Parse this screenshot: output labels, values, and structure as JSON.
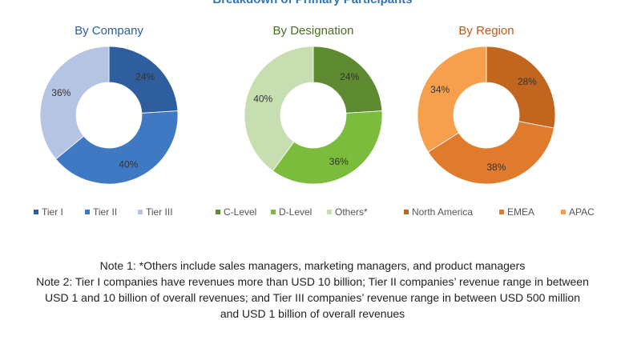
{
  "header": {
    "title": "Breakdown of Primary Participants"
  },
  "chart_data": [
    {
      "type": "pie",
      "title": "By Company",
      "categories": [
        "Tier I",
        "Tier II",
        "Tier III"
      ],
      "values": [
        24,
        40,
        36
      ],
      "labels": [
        "24%",
        "40%",
        "36%"
      ],
      "colors": [
        "#2e5e9e",
        "#3f79c4",
        "#b4c4e2"
      ]
    },
    {
      "type": "pie",
      "title": "By Designation",
      "categories": [
        "C-Level",
        "D-Level",
        "Others*"
      ],
      "values": [
        24,
        36,
        40
      ],
      "labels": [
        "24%",
        "36%",
        "40%"
      ],
      "colors": [
        "#5e8a31",
        "#7cbc3c",
        "#c7dfb0"
      ]
    },
    {
      "type": "pie",
      "title": "By Region",
      "categories": [
        "North America",
        "EMEA",
        "APAC"
      ],
      "values": [
        28,
        38,
        34
      ],
      "labels": [
        "28%",
        "38%",
        "34%"
      ],
      "colors": [
        "#c2651f",
        "#e07b2e",
        "#f6a04e"
      ]
    }
  ],
  "notes": {
    "line1": "Note 1: *Others include sales managers, marketing managers, and product managers",
    "line2": "Note 2: Tier I companies have revenues more than USD 10 billion; Tier II companies’ revenue range in between",
    "line3": "USD 1 and 10 billion of overall revenues; and Tier III companies’ revenue range in between USD 500 million",
    "line4": "and USD 1 billion of overall revenues"
  }
}
